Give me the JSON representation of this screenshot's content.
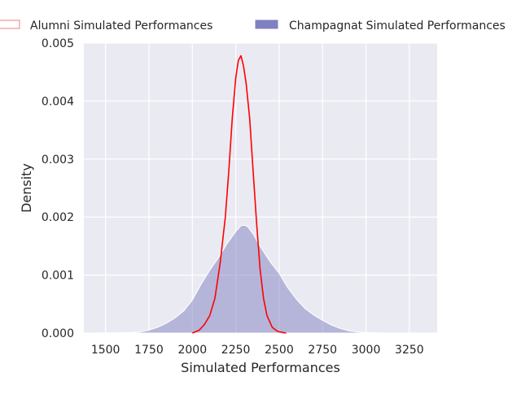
{
  "chart_data": {
    "type": "area",
    "xlabel": "Simulated Performances",
    "ylabel": "Density",
    "xlim": [
      1375,
      3410
    ],
    "ylim": [
      0,
      0.005
    ],
    "xticks": [
      1500,
      1750,
      2000,
      2250,
      2500,
      2750,
      3000,
      3250
    ],
    "yticks": [
      0,
      0.001,
      0.002,
      0.003,
      0.004,
      0.005
    ],
    "xtick_labels": [
      "1500",
      "1750",
      "2000",
      "2250",
      "2500",
      "2750",
      "3000",
      "3250"
    ],
    "ytick_labels": [
      "0.000",
      "0.001",
      "0.002",
      "0.003",
      "0.004",
      "0.005"
    ],
    "grid": true,
    "legend_position": "top",
    "series": [
      {
        "name": "Alumni Simulated Performances",
        "style": "line",
        "color": "#ff0000",
        "legend_swatch": "open",
        "x": [
          2000,
          2040,
          2070,
          2100,
          2130,
          2160,
          2190,
          2210,
          2230,
          2250,
          2265,
          2280,
          2295,
          2310,
          2330,
          2350,
          2370,
          2390,
          2410,
          2430,
          2460,
          2490,
          2520,
          2540
        ],
        "y": [
          0.0,
          5e-05,
          0.00015,
          0.0003,
          0.0006,
          0.0012,
          0.002,
          0.0028,
          0.0037,
          0.0044,
          0.0047,
          0.00478,
          0.0046,
          0.0043,
          0.0037,
          0.0028,
          0.0019,
          0.0011,
          0.0006,
          0.0003,
          0.0001,
          3e-05,
          1e-05,
          0.0
        ]
      },
      {
        "name": "Champagnat Simulated Performances",
        "style": "filled",
        "color": "#8080c0",
        "x": [
          1450,
          1550,
          1650,
          1700,
          1750,
          1800,
          1850,
          1900,
          1950,
          2000,
          2050,
          2100,
          2150,
          2200,
          2250,
          2280,
          2300,
          2320,
          2350,
          2400,
          2450,
          2500,
          2550,
          2600,
          2650,
          2700,
          2750,
          2800,
          2850,
          2900,
          2950,
          3000,
          3100,
          3200,
          3320
        ],
        "y": [
          0.0,
          3e-06,
          1e-05,
          2e-05,
          5e-05,
          0.0001,
          0.00017,
          0.00026,
          0.00038,
          0.00057,
          0.00084,
          0.00108,
          0.0013,
          0.00154,
          0.00175,
          0.00185,
          0.00186,
          0.00183,
          0.00171,
          0.00145,
          0.00122,
          0.00103,
          0.00078,
          0.00058,
          0.00042,
          0.00031,
          0.00022,
          0.00014,
          8e-05,
          4e-05,
          2e-05,
          1e-05,
          2e-06,
          5e-07,
          0.0
        ]
      }
    ]
  }
}
